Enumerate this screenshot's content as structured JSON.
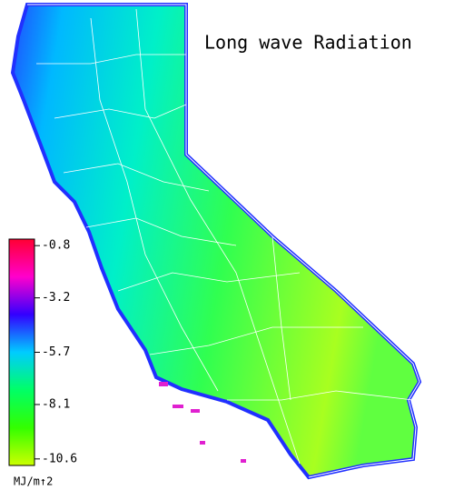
{
  "title": "Long wave Radiation",
  "colorbar": {
    "lim": [
      -0.5,
      -10.9
    ],
    "ticks": [
      -0.8,
      -3.2,
      -5.7,
      -8.1,
      -10.6
    ],
    "label": "MJ/m↑2",
    "colors": [
      "#ff0033",
      "#ff00cc",
      "#3300ff",
      "#00ccff",
      "#00ff66",
      "#33ff00",
      "#ccff00"
    ]
  }
}
